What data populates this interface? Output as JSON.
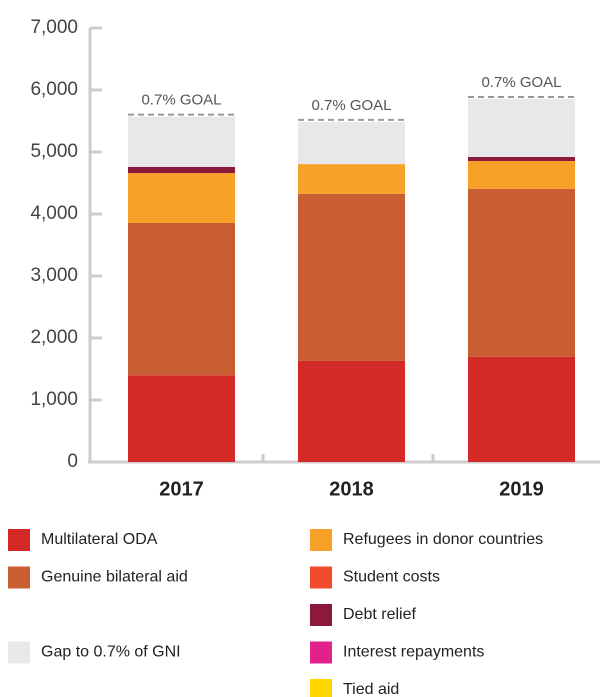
{
  "chart_data": {
    "type": "stacked_bar",
    "categories": [
      "2017",
      "2018",
      "2019"
    ],
    "annotations": [
      "0.7% GOAL",
      "0.7% GOAL",
      "0.7% GOAL"
    ],
    "series": [
      {
        "name": "Multilateral ODA",
        "color": "#d42a27",
        "values": [
          1400,
          1630,
          1695
        ]
      },
      {
        "name": "Genuine bilateral aid",
        "color": "#c85e31",
        "values": [
          2455,
          2695,
          2710
        ]
      },
      {
        "name": "Refugees in donor countries",
        "color": "#f7a128",
        "values": [
          805,
          480,
          450
        ]
      },
      {
        "name": "Student costs",
        "color": "#ef4b2c",
        "values": [
          0,
          0,
          0
        ]
      },
      {
        "name": "Debt relief",
        "color": "#8b1a3a",
        "values": [
          100,
          0,
          65
        ]
      },
      {
        "name": "Interest repayments",
        "color": "#e3218d",
        "values": [
          0,
          0,
          0
        ]
      },
      {
        "name": "Tied aid",
        "color": "#ffd600",
        "values": [
          0,
          0,
          0
        ]
      },
      {
        "name": "Gap to 0.7% of GNI",
        "color": "#e8e8ea",
        "values": [
          810,
          680,
          935
        ]
      }
    ],
    "ylim": [
      0,
      7000
    ],
    "yticks": [
      0,
      {
        "value": 1000,
        "label": "1,000"
      },
      {
        "value": 2000,
        "label": "2,000"
      },
      {
        "value": 3000,
        "label": "3,000"
      },
      {
        "value": 4000,
        "label": "4,000"
      },
      {
        "value": 5000,
        "label": "5,000"
      },
      {
        "value": 6000,
        "label": "6,000"
      },
      {
        "value": 7000,
        "label": "7,000"
      }
    ],
    "grid": false
  }
}
